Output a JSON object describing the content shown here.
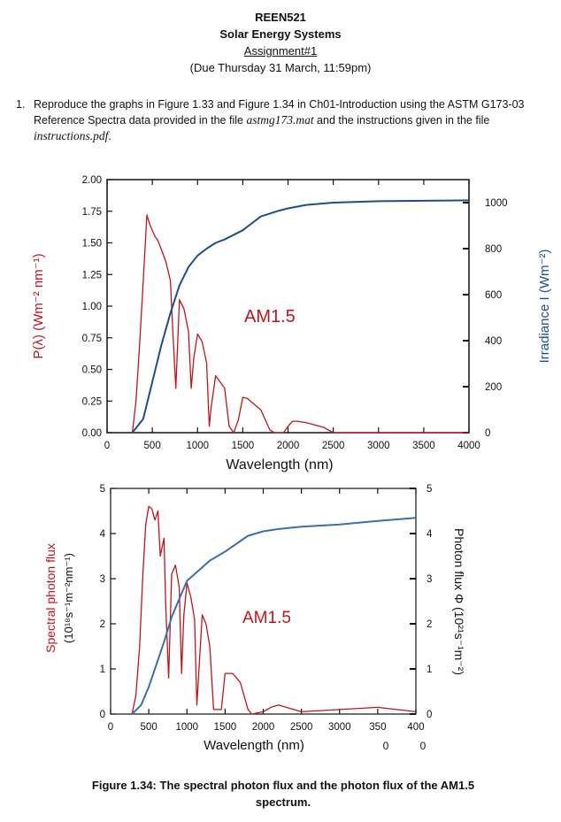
{
  "header": {
    "course": "REEN521",
    "subject": "Solar Energy Systems",
    "assignment": "Assignment#1",
    "due": "(Due Thursday 31 March, 11:59pm)"
  },
  "question": {
    "number": "1.",
    "text_part1": "Reproduce the graphs in Figure 1.33 and Figure 1.34 in Ch01-Introduction using the ASTM G173-03 Reference Spectra data provided in the file ",
    "file1": "astmg173.mat",
    "text_part2": " and the instructions given in the file ",
    "file2": "instructions.pdf",
    "text_part3": "."
  },
  "chart_data": [
    {
      "type": "line",
      "title": "",
      "annotation": "AM1.5",
      "xlabel": "Wavelength (nm)",
      "ylabel_left": "P(λ) (Wm⁻² nm⁻¹)",
      "ylabel_right": "Irradiance I (Wm⁻²)",
      "xlim": [
        0,
        4000
      ],
      "ylim_left": [
        0,
        2.0
      ],
      "ylim_right": [
        0,
        1100
      ],
      "x_ticks": [
        "0",
        "500",
        "1000",
        "1500",
        "2000",
        "2500",
        "3000",
        "3500",
        "4000"
      ],
      "y_ticks_left": [
        "0.00",
        "0.25",
        "0.50",
        "0.75",
        "1.00",
        "1.25",
        "1.50",
        "1.75",
        "2.00"
      ],
      "y_ticks_right": [
        "0",
        "200",
        "400",
        "600",
        "800",
        "1000"
      ],
      "series": [
        {
          "name": "Spectral irradiance P(λ)",
          "axis": "left",
          "color": "#c0141c",
          "x": [
            280,
            320,
            360,
            400,
            440,
            470,
            500,
            530,
            560,
            600,
            650,
            700,
            720,
            760,
            800,
            850,
            900,
            930,
            960,
            1000,
            1050,
            1100,
            1130,
            1150,
            1200,
            1250,
            1300,
            1350,
            1400,
            1450,
            1500,
            1550,
            1600,
            1700,
            1800,
            1850,
            1950,
            2000,
            2050,
            2100,
            2200,
            2300,
            2400,
            2500,
            2600,
            3000,
            3500,
            4000
          ],
          "y": [
            0.0,
            0.25,
            0.7,
            1.2,
            1.72,
            1.65,
            1.6,
            1.55,
            1.52,
            1.45,
            1.35,
            1.2,
            0.9,
            0.35,
            1.05,
            0.98,
            0.8,
            0.35,
            0.6,
            0.78,
            0.72,
            0.55,
            0.05,
            0.2,
            0.45,
            0.4,
            0.35,
            0.05,
            0.0,
            0.1,
            0.28,
            0.27,
            0.24,
            0.18,
            0.02,
            0.0,
            0.0,
            0.05,
            0.09,
            0.09,
            0.08,
            0.06,
            0.04,
            0.0,
            0.0,
            0.0,
            0.0,
            0.0
          ]
        },
        {
          "name": "Cumulative irradiance I",
          "axis": "right",
          "color": "#1f4e8c",
          "x": [
            280,
            400,
            500,
            600,
            700,
            800,
            900,
            1000,
            1100,
            1200,
            1300,
            1500,
            1700,
            1900,
            2000,
            2200,
            2500,
            3000,
            3500,
            4000
          ],
          "y": [
            0,
            60,
            220,
            380,
            520,
            640,
            720,
            770,
            800,
            825,
            840,
            880,
            940,
            965,
            975,
            990,
            1000,
            1006,
            1008,
            1010
          ]
        }
      ]
    },
    {
      "type": "line",
      "title": "",
      "annotation": "AM1.5",
      "xlabel": "Wavelength (nm)",
      "ylabel_left_1": "Spectral photon flux",
      "ylabel_left_2": "(10¹⁸s⁻¹m⁻²nm⁻¹)",
      "ylabel_right": "Photon flux Φ (10²¹s⁻¹m⁻²)",
      "xlim": [
        0,
        4000
      ],
      "ylim_left": [
        0,
        5
      ],
      "ylim_right": [
        0,
        5
      ],
      "x_ticks": [
        "0",
        "500",
        "1000",
        "1500",
        "2000",
        "2500",
        "3000",
        "350",
        "400"
      ],
      "x_tick_overflow": [
        "0",
        "0"
      ],
      "y_ticks_left": [
        "0",
        "1",
        "2",
        "3",
        "4",
        "5"
      ],
      "y_ticks_right": [
        "0",
        "1",
        "2",
        "3",
        "4",
        "5"
      ],
      "series": [
        {
          "name": "Spectral photon flux",
          "axis": "left",
          "color": "#c0141c",
          "x": [
            280,
            330,
            380,
            420,
            460,
            500,
            540,
            580,
            620,
            650,
            700,
            720,
            760,
            800,
            850,
            900,
            930,
            960,
            1000,
            1050,
            1100,
            1130,
            1200,
            1250,
            1300,
            1350,
            1450,
            1500,
            1600,
            1700,
            1800,
            1850,
            2000,
            2100,
            2200,
            2400,
            2500,
            3000,
            3500,
            4000
          ],
          "y": [
            0.0,
            0.4,
            1.5,
            3.0,
            4.2,
            4.6,
            4.55,
            4.3,
            4.5,
            3.5,
            3.9,
            2.5,
            0.8,
            3.1,
            3.3,
            2.8,
            0.9,
            2.2,
            2.9,
            2.6,
            2.1,
            0.2,
            2.2,
            2.0,
            1.5,
            0.1,
            0.1,
            0.9,
            0.9,
            0.7,
            0.1,
            0.0,
            0.05,
            0.15,
            0.2,
            0.1,
            0.05,
            0.1,
            0.15,
            0.05
          ]
        },
        {
          "name": "Cumulative photon flux Φ",
          "axis": "right",
          "color": "#3a6fa8",
          "x": [
            280,
            400,
            500,
            600,
            700,
            800,
            900,
            1000,
            1100,
            1200,
            1300,
            1500,
            1800,
            2000,
            2200,
            2500,
            3000,
            3500,
            4000
          ],
          "y": [
            0,
            0.2,
            0.6,
            1.1,
            1.6,
            2.15,
            2.55,
            2.95,
            3.1,
            3.25,
            3.4,
            3.6,
            3.95,
            4.05,
            4.1,
            4.15,
            4.2,
            4.28,
            4.35
          ]
        }
      ]
    }
  ],
  "caption": {
    "line1": "Figure 1.34: The spectral photon flux and the photon flux of the AM1.5",
    "line2": "spectrum."
  }
}
